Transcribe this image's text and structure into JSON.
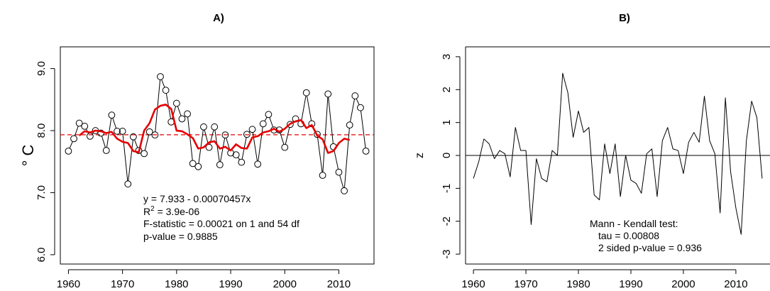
{
  "chart_data": [
    {
      "type": "scatter",
      "panel_label": "A)",
      "ylabel": "° C",
      "xlabel": "",
      "xlim": [
        1958.5,
        2016.5
      ],
      "ylim": [
        5.85,
        9.35
      ],
      "x_ticks": [
        "1960",
        "1970",
        "1980",
        "1990",
        "2000",
        "2010"
      ],
      "y_ticks": [
        "6.0",
        "7.0",
        "8.0",
        "9.0"
      ],
      "series": [
        {
          "x": [
            1960,
            1961,
            1962,
            1963,
            1964,
            1965,
            1966,
            1967,
            1968,
            1969,
            1970,
            1971,
            1972,
            1973,
            1974,
            1975,
            1976,
            1977,
            1978,
            1979,
            1980,
            1981,
            1982,
            1983,
            1984,
            1985,
            1986,
            1987,
            1988,
            1989,
            1990,
            1991,
            1992,
            1993,
            1994,
            1995,
            1996,
            1997,
            1998,
            1999,
            2000,
            2001,
            2002,
            2003,
            2004,
            2005,
            2006,
            2007,
            2008,
            2009,
            2010,
            2011,
            2012,
            2013,
            2014,
            2015
          ],
          "values": [
            7.67,
            7.87,
            8.12,
            8.07,
            7.91,
            8.0,
            7.96,
            7.68,
            8.25,
            7.99,
            7.99,
            7.14,
            7.9,
            7.68,
            7.63,
            7.98,
            7.93,
            8.87,
            8.65,
            8.14,
            8.44,
            8.19,
            8.27,
            7.47,
            7.42,
            8.06,
            7.73,
            8.06,
            7.45,
            7.93,
            7.64,
            7.61,
            7.49,
            7.94,
            8.02,
            7.46,
            8.11,
            8.26,
            8.01,
            8.01,
            7.73,
            8.1,
            8.19,
            8.11,
            8.61,
            8.11,
            7.94,
            7.28,
            8.59,
            7.74,
            7.33,
            7.03,
            8.09,
            8.56,
            8.37,
            7.67
          ]
        },
        {
          "name": "moving average",
          "x": [
            1962,
            1963,
            1964,
            1965,
            1966,
            1967,
            1968,
            1969,
            1970,
            1971,
            1972,
            1973,
            1974,
            1975,
            1976,
            1977,
            1978,
            1979,
            1980,
            1981,
            1982,
            1983,
            1984,
            1985,
            1986,
            1987,
            1988,
            1989,
            1990,
            1991,
            1992,
            1993,
            1994,
            1995,
            1996,
            1997,
            1998,
            1999,
            2000,
            2001,
            2002,
            2003,
            2004,
            2005,
            2006,
            2007,
            2008,
            2009,
            2010,
            2011,
            2012
          ],
          "values": [
            7.92,
            7.99,
            7.97,
            8.0,
            7.99,
            7.96,
            7.98,
            7.87,
            7.82,
            7.8,
            7.67,
            7.65,
            8.0,
            8.12,
            8.34,
            8.4,
            8.42,
            8.35,
            8.0,
            7.99,
            7.94,
            7.88,
            7.71,
            7.73,
            7.81,
            7.83,
            7.71,
            7.74,
            7.68,
            7.78,
            7.72,
            7.71,
            7.89,
            7.91,
            7.97,
            7.99,
            8.03,
            7.98,
            8.03,
            8.11,
            8.15,
            8.17,
            8.04,
            8.09,
            7.92,
            7.86,
            7.64,
            7.67,
            7.8,
            7.87,
            7.85
          ]
        }
      ],
      "mean_line": 7.933,
      "annotations": {
        "equation": "y = 7.933 - 0.00070457x",
        "r2_label": "R",
        "r2_exp": "2",
        "r2_value": " = 3.9e-06",
        "fstat": "F-statistic = 0.00021 on 1 and 54 df",
        "pvalue": "p-value = 0.9885"
      },
      "colors": {
        "points": "#000000",
        "moving_average": "#e60000",
        "mean_line": "#e60000"
      },
      "grid": false
    },
    {
      "type": "line",
      "panel_label": "B)",
      "ylabel": "z",
      "xlabel": "",
      "xlim": [
        1958.5,
        2016.5
      ],
      "ylim": [
        -3.3,
        3.3
      ],
      "x_ticks": [
        "1960",
        "1970",
        "1980",
        "1990",
        "2000",
        "2010"
      ],
      "y_ticks": [
        "-3",
        "-2",
        "-1",
        "0",
        "1",
        "2",
        "3"
      ],
      "series": [
        {
          "x": [
            1960,
            1961,
            1962,
            1963,
            1964,
            1965,
            1966,
            1967,
            1968,
            1969,
            1970,
            1971,
            1972,
            1973,
            1974,
            1975,
            1976,
            1977,
            1978,
            1979,
            1980,
            1981,
            1982,
            1983,
            1984,
            1985,
            1986,
            1987,
            1988,
            1989,
            1990,
            1991,
            1992,
            1993,
            1994,
            1995,
            1996,
            1997,
            1998,
            1999,
            2000,
            2001,
            2002,
            2003,
            2004,
            2005,
            2006,
            2007,
            2008,
            2009,
            2010,
            2011,
            2012,
            2013,
            2014,
            2015
          ],
          "values": [
            -0.7,
            -0.2,
            0.5,
            0.35,
            -0.1,
            0.15,
            0.05,
            -0.65,
            0.85,
            0.15,
            0.15,
            -2.1,
            -0.1,
            -0.7,
            -0.8,
            0.15,
            0.0,
            2.5,
            1.9,
            0.55,
            1.35,
            0.7,
            0.85,
            -1.2,
            -1.35,
            0.35,
            -0.55,
            0.35,
            -1.25,
            0.0,
            -0.75,
            -0.85,
            -1.15,
            0.05,
            0.2,
            -1.25,
            0.45,
            0.85,
            0.2,
            0.15,
            -0.55,
            0.4,
            0.7,
            0.4,
            1.8,
            0.45,
            0.05,
            -1.75,
            1.75,
            -0.5,
            -1.6,
            -2.4,
            0.45,
            1.65,
            1.15,
            -0.7
          ]
        }
      ],
      "zero_line": 0,
      "annotations": {
        "test": "Mann - Kendall test:",
        "tau": "tau = 0.00808",
        "pvalue": "2 sided p-value = 0.936"
      },
      "colors": {
        "line": "#000000"
      },
      "grid": false
    }
  ]
}
